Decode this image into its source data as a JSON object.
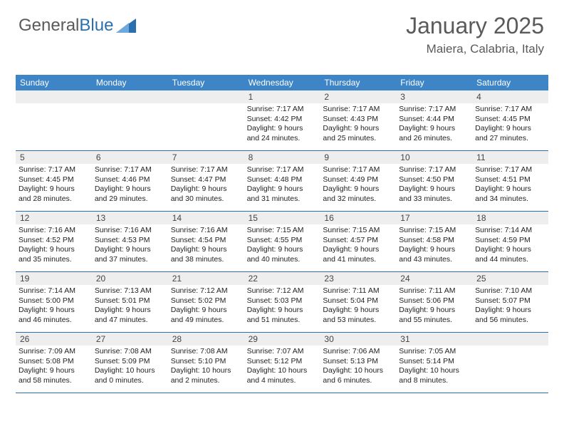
{
  "logo": {
    "text1": "General",
    "text2": "Blue"
  },
  "header": {
    "month_year": "January 2025",
    "location": "Maiera, Calabria, Italy"
  },
  "colors": {
    "header_bg": "#3d85c6",
    "daynum_bg": "#eeeeee",
    "week_border": "#2a6fb0",
    "text": "#333333",
    "title_text": "#5a5a5a",
    "logo_blue": "#2a6fb0"
  },
  "daysOfWeek": [
    "Sunday",
    "Monday",
    "Tuesday",
    "Wednesday",
    "Thursday",
    "Friday",
    "Saturday"
  ],
  "grid": [
    [
      null,
      null,
      null,
      {
        "n": "1",
        "sr": "7:17 AM",
        "ss": "4:42 PM",
        "dl": "9 hours and 24 minutes."
      },
      {
        "n": "2",
        "sr": "7:17 AM",
        "ss": "4:43 PM",
        "dl": "9 hours and 25 minutes."
      },
      {
        "n": "3",
        "sr": "7:17 AM",
        "ss": "4:44 PM",
        "dl": "9 hours and 26 minutes."
      },
      {
        "n": "4",
        "sr": "7:17 AM",
        "ss": "4:45 PM",
        "dl": "9 hours and 27 minutes."
      }
    ],
    [
      {
        "n": "5",
        "sr": "7:17 AM",
        "ss": "4:45 PM",
        "dl": "9 hours and 28 minutes."
      },
      {
        "n": "6",
        "sr": "7:17 AM",
        "ss": "4:46 PM",
        "dl": "9 hours and 29 minutes."
      },
      {
        "n": "7",
        "sr": "7:17 AM",
        "ss": "4:47 PM",
        "dl": "9 hours and 30 minutes."
      },
      {
        "n": "8",
        "sr": "7:17 AM",
        "ss": "4:48 PM",
        "dl": "9 hours and 31 minutes."
      },
      {
        "n": "9",
        "sr": "7:17 AM",
        "ss": "4:49 PM",
        "dl": "9 hours and 32 minutes."
      },
      {
        "n": "10",
        "sr": "7:17 AM",
        "ss": "4:50 PM",
        "dl": "9 hours and 33 minutes."
      },
      {
        "n": "11",
        "sr": "7:17 AM",
        "ss": "4:51 PM",
        "dl": "9 hours and 34 minutes."
      }
    ],
    [
      {
        "n": "12",
        "sr": "7:16 AM",
        "ss": "4:52 PM",
        "dl": "9 hours and 35 minutes."
      },
      {
        "n": "13",
        "sr": "7:16 AM",
        "ss": "4:53 PM",
        "dl": "9 hours and 37 minutes."
      },
      {
        "n": "14",
        "sr": "7:16 AM",
        "ss": "4:54 PM",
        "dl": "9 hours and 38 minutes."
      },
      {
        "n": "15",
        "sr": "7:15 AM",
        "ss": "4:55 PM",
        "dl": "9 hours and 40 minutes."
      },
      {
        "n": "16",
        "sr": "7:15 AM",
        "ss": "4:57 PM",
        "dl": "9 hours and 41 minutes."
      },
      {
        "n": "17",
        "sr": "7:15 AM",
        "ss": "4:58 PM",
        "dl": "9 hours and 43 minutes."
      },
      {
        "n": "18",
        "sr": "7:14 AM",
        "ss": "4:59 PM",
        "dl": "9 hours and 44 minutes."
      }
    ],
    [
      {
        "n": "19",
        "sr": "7:14 AM",
        "ss": "5:00 PM",
        "dl": "9 hours and 46 minutes."
      },
      {
        "n": "20",
        "sr": "7:13 AM",
        "ss": "5:01 PM",
        "dl": "9 hours and 47 minutes."
      },
      {
        "n": "21",
        "sr": "7:12 AM",
        "ss": "5:02 PM",
        "dl": "9 hours and 49 minutes."
      },
      {
        "n": "22",
        "sr": "7:12 AM",
        "ss": "5:03 PM",
        "dl": "9 hours and 51 minutes."
      },
      {
        "n": "23",
        "sr": "7:11 AM",
        "ss": "5:04 PM",
        "dl": "9 hours and 53 minutes."
      },
      {
        "n": "24",
        "sr": "7:11 AM",
        "ss": "5:06 PM",
        "dl": "9 hours and 55 minutes."
      },
      {
        "n": "25",
        "sr": "7:10 AM",
        "ss": "5:07 PM",
        "dl": "9 hours and 56 minutes."
      }
    ],
    [
      {
        "n": "26",
        "sr": "7:09 AM",
        "ss": "5:08 PM",
        "dl": "9 hours and 58 minutes."
      },
      {
        "n": "27",
        "sr": "7:08 AM",
        "ss": "5:09 PM",
        "dl": "10 hours and 0 minutes."
      },
      {
        "n": "28",
        "sr": "7:08 AM",
        "ss": "5:10 PM",
        "dl": "10 hours and 2 minutes."
      },
      {
        "n": "29",
        "sr": "7:07 AM",
        "ss": "5:12 PM",
        "dl": "10 hours and 4 minutes."
      },
      {
        "n": "30",
        "sr": "7:06 AM",
        "ss": "5:13 PM",
        "dl": "10 hours and 6 minutes."
      },
      {
        "n": "31",
        "sr": "7:05 AM",
        "ss": "5:14 PM",
        "dl": "10 hours and 8 minutes."
      },
      null
    ]
  ],
  "labels": {
    "sunrise": "Sunrise:",
    "sunset": "Sunset:",
    "daylight": "Daylight:"
  }
}
